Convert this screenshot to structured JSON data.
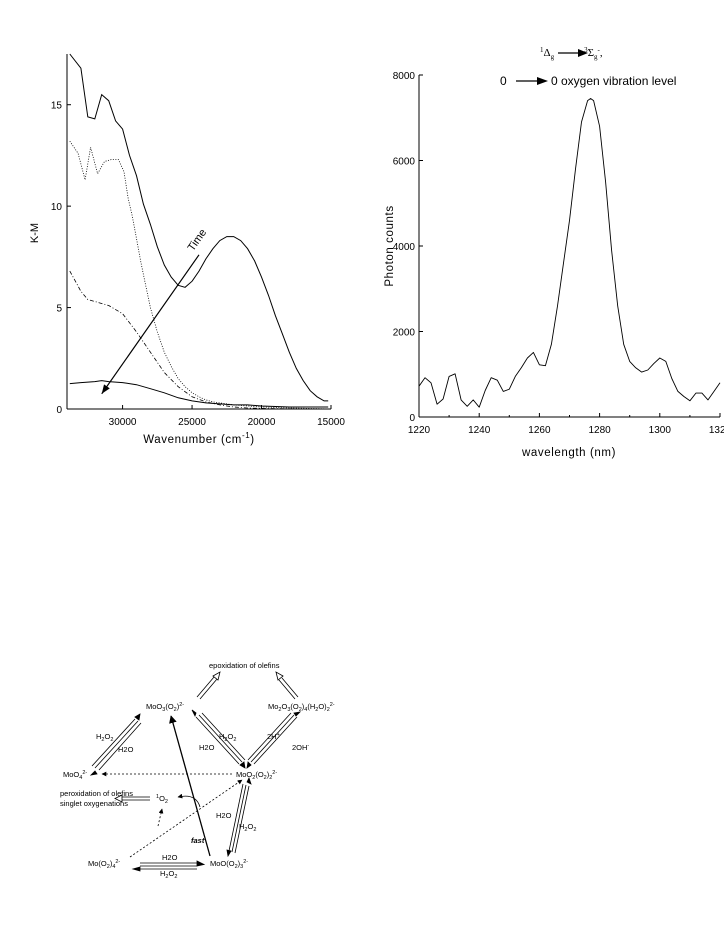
{
  "chart_data": [
    {
      "type": "line",
      "title": "",
      "xlabel": "Wavenumber (cm",
      "xlabel_sup": "-1",
      "xlabel_close": ")",
      "ylabel": "K-M",
      "xlim": [
        34000,
        15000
      ],
      "ylim": [
        0,
        17.5
      ],
      "x_ticks": [
        30000,
        25000,
        20000,
        15000
      ],
      "y_ticks": [
        0,
        5,
        10,
        15
      ],
      "grid": false,
      "annotation": {
        "text": "Time",
        "from": [
          24500,
          7.6
        ],
        "to": [
          31500,
          0.75
        ]
      },
      "series": [
        {
          "style": "solid",
          "x": [
            33800,
            33000,
            32500,
            32000,
            31500,
            31000,
            30500,
            30000,
            29500,
            29000,
            28500,
            28000,
            27500,
            27000,
            26500,
            26000,
            25500,
            25000,
            24500,
            24000,
            23500,
            23000,
            22500,
            22000,
            21500,
            21000,
            20500,
            20000,
            19500,
            19000,
            18500,
            18000,
            17500,
            17000,
            16500,
            16000,
            15500,
            15200
          ],
          "y": [
            17.5,
            16.8,
            14.4,
            14.3,
            15.5,
            15.2,
            14.2,
            13.8,
            12.5,
            11.5,
            10.1,
            9.1,
            8.0,
            7.1,
            6.5,
            6.1,
            6.0,
            6.3,
            6.8,
            7.4,
            7.9,
            8.3,
            8.5,
            8.5,
            8.3,
            7.9,
            7.3,
            6.5,
            5.6,
            4.6,
            3.7,
            2.8,
            2.0,
            1.4,
            0.9,
            0.6,
            0.4,
            0.4
          ]
        },
        {
          "style": "dotted",
          "x": [
            33800,
            33200,
            32700,
            32300,
            31800,
            31300,
            30800,
            30300,
            29900,
            29600,
            29300,
            29000,
            28700,
            28400,
            28000,
            27500,
            27000,
            26500,
            26000,
            25500,
            25000,
            24500,
            24000,
            23500,
            23000,
            22000,
            21000,
            20000,
            18000,
            16000,
            15200
          ],
          "y": [
            13.2,
            12.6,
            11.3,
            12.9,
            11.6,
            12.2,
            12.3,
            12.3,
            11.7,
            10.4,
            9.5,
            8.4,
            7.3,
            6.3,
            5.0,
            3.8,
            2.8,
            2.1,
            1.5,
            1.1,
            0.8,
            0.6,
            0.45,
            0.35,
            0.3,
            0.2,
            0.15,
            0.1,
            0.05,
            0.02,
            0.0
          ]
        },
        {
          "style": "dashdot",
          "x": [
            33800,
            33000,
            32500,
            32000,
            31000,
            30000,
            29000,
            28000,
            27000,
            26000,
            25000,
            24000,
            23000,
            22000,
            21000,
            20000,
            18000,
            16000,
            15200
          ],
          "y": [
            6.8,
            5.8,
            5.4,
            5.3,
            5.1,
            4.7,
            3.8,
            2.8,
            1.8,
            1.1,
            0.6,
            0.35,
            0.2,
            0.1,
            0.05,
            0.03,
            0.01,
            0.0,
            0.0
          ]
        },
        {
          "style": "solid",
          "x": [
            33800,
            33000,
            32000,
            31500,
            31000,
            30000,
            29000,
            28000,
            27000,
            26000,
            25000,
            24000,
            23000,
            22000,
            21000,
            20000,
            18000,
            16000,
            15200
          ],
          "y": [
            1.25,
            1.3,
            1.35,
            1.4,
            1.35,
            1.3,
            1.2,
            1.0,
            0.8,
            0.55,
            0.4,
            0.3,
            0.25,
            0.2,
            0.2,
            0.15,
            0.1,
            0.1,
            0.1
          ]
        }
      ]
    },
    {
      "type": "line",
      "title": "",
      "xlabel": "wavelength (nm)",
      "ylabel": "Photon counts",
      "xlim": [
        1220,
        1320
      ],
      "ylim": [
        0,
        8000
      ],
      "x_ticks": [
        1220,
        1240,
        1260,
        1280,
        1300,
        1320
      ],
      "y_ticks": [
        0,
        2000,
        4000,
        6000,
        8000
      ],
      "grid": false,
      "annotation_line1": {
        "pre": "",
        "sup1": "1",
        "delta": "Δ",
        "sub1": "g",
        "sup2": "3",
        "sigma": "Σ",
        "sub2": "g",
        "sup3": "-",
        "post": ","
      },
      "annotation_line2": {
        "left": "0",
        "right": "0 oxygen vibration level"
      },
      "series": [
        {
          "style": "solid",
          "x": [
            1220,
            1222,
            1224,
            1226,
            1228,
            1230,
            1232,
            1234,
            1236,
            1238,
            1240,
            1242,
            1244,
            1246,
            1248,
            1250,
            1252,
            1254,
            1256,
            1258,
            1260,
            1262,
            1264,
            1266,
            1268,
            1270,
            1272,
            1274,
            1276,
            1277,
            1278,
            1280,
            1282,
            1284,
            1286,
            1288,
            1290,
            1292,
            1294,
            1296,
            1298,
            1300,
            1302,
            1304,
            1306,
            1308,
            1310,
            1312,
            1314,
            1316,
            1318,
            1320
          ],
          "y": [
            720,
            920,
            800,
            300,
            420,
            950,
            1010,
            400,
            250,
            400,
            230,
            620,
            920,
            860,
            600,
            650,
            950,
            1150,
            1380,
            1510,
            1220,
            1200,
            1700,
            2600,
            3600,
            4600,
            5800,
            6900,
            7400,
            7450,
            7400,
            6800,
            5500,
            3900,
            2600,
            1700,
            1300,
            1150,
            1050,
            1100,
            1250,
            1380,
            1300,
            900,
            600,
            480,
            380,
            560,
            560,
            400,
            600,
            800
          ]
        }
      ]
    }
  ],
  "scheme": {
    "epoxidation": "epoxidation of olefins",
    "mo_oxo_top": {
      "a": "MoO",
      "b": "3",
      "c": "(O",
      "d": "2",
      "e": ")",
      "f": "2-"
    },
    "dimer": {
      "a": "Mo",
      "b": "2",
      "c": "O",
      "d": "3",
      "e": "(O",
      "f": "2",
      "g": ")",
      "h": "4",
      "i": "(H",
      "j": "2",
      "k": "O)",
      "l": "2",
      "m": "2-"
    },
    "h2o2_left": {
      "a": "H",
      "b": "2",
      "c": "O",
      "d": "2"
    },
    "h2o_left": "H2O",
    "h2o2_mid": {
      "a": "H",
      "b": "2",
      "c": "O",
      "d": "2"
    },
    "h2o_mid": "H2O",
    "two_h": {
      "a": "2H",
      "b": "+"
    },
    "two_oh": {
      "a": "2OH",
      "b": "-"
    },
    "moo4": {
      "a": "MoO",
      "b": "4",
      "c": "2-"
    },
    "moo2": {
      "a": "MoO",
      "b": "2",
      "c": "(O",
      "d": "2",
      "e": ")",
      "f": "2",
      "g": "2-"
    },
    "peroxidation_1": "peroxidation of olefins",
    "peroxidation_2": "singlet oxygenations",
    "singlet_o2": {
      "a": "1",
      "b": "O",
      "c": "2"
    },
    "fast": "fast",
    "h2o_right": "H2O",
    "h2o2_right": {
      "a": "H",
      "b": "2",
      "c": "O",
      "d": "2"
    },
    "mo_o2_4": {
      "a": "Mo(O",
      "b": "2",
      "c": ")",
      "d": "4",
      "e": "2-"
    },
    "h2o_bottom": "H2O",
    "h2o2_bottom": {
      "a": "H",
      "b": "2",
      "c": "O",
      "d": "2"
    },
    "moo_o2_3": {
      "a": "MoO(O",
      "b": "2",
      "c": ")",
      "d": "3",
      "e": "2-"
    }
  }
}
